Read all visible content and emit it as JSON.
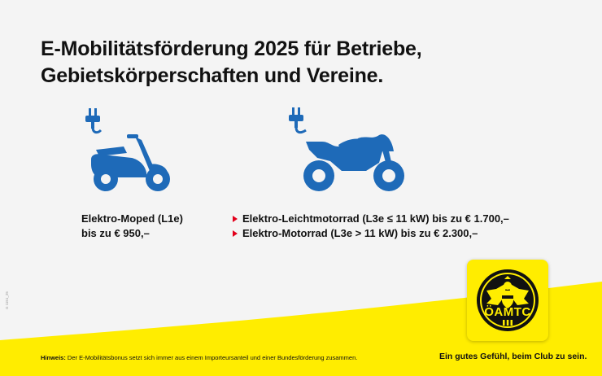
{
  "title": {
    "line1": "E-Mobilitätsförderung 2025 für Betriebe,",
    "line2": "Gebietskörperschaften und Vereine."
  },
  "icons": {
    "moped": "electric-moped-icon",
    "motorcycle": "electric-motorcycle-icon",
    "bullet": "red-triangle-bullet-icon"
  },
  "moped": {
    "line1": "Elektro-Moped (L1e)",
    "line2": "bis zu € 950,–"
  },
  "motorcycles": [
    "Elektro-Leichtmotorrad (L3e ≤ 11 kW) bis zu € 1.700,–",
    "Elektro-Motorrad (L3e > 11 kW) bis zu € 2.300,–"
  ],
  "footer": {
    "note_label": "Hinweis:",
    "note_text": " Der E-Mobilitätsbonus setzt sich immer aus einem Importeursanteil und einer Bundesförderung zusammen.",
    "slogan": "Ein gutes Gefühl, beim Club zu sein.",
    "code": "G 1151_25"
  },
  "logo": {
    "text": "ÖAMTC"
  },
  "colors": {
    "icon_blue": "#1e6ab8",
    "yellow": "#ffed00",
    "background": "#f4f4f4",
    "bullet_red": "#e3001b"
  }
}
